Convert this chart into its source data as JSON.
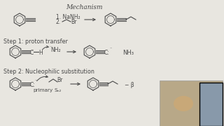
{
  "bg_color": "#e8e6e0",
  "text_color": "#4a4a4a",
  "title": "Mechanism",
  "step1_label": "Step 1: proton transfer",
  "step2_label": "Step 2: Nucleophilic substitution",
  "reagent1": "1. NaNH₂",
  "reagent2": "2.",
  "nh3": "NH₃",
  "primary": "primary",
  "sn2": "Sₙ₂",
  "webcam_color": "#b8a888",
  "arrow_color": "#4a4a4a",
  "lw_struct": 0.8,
  "lw_arrow": 0.8
}
